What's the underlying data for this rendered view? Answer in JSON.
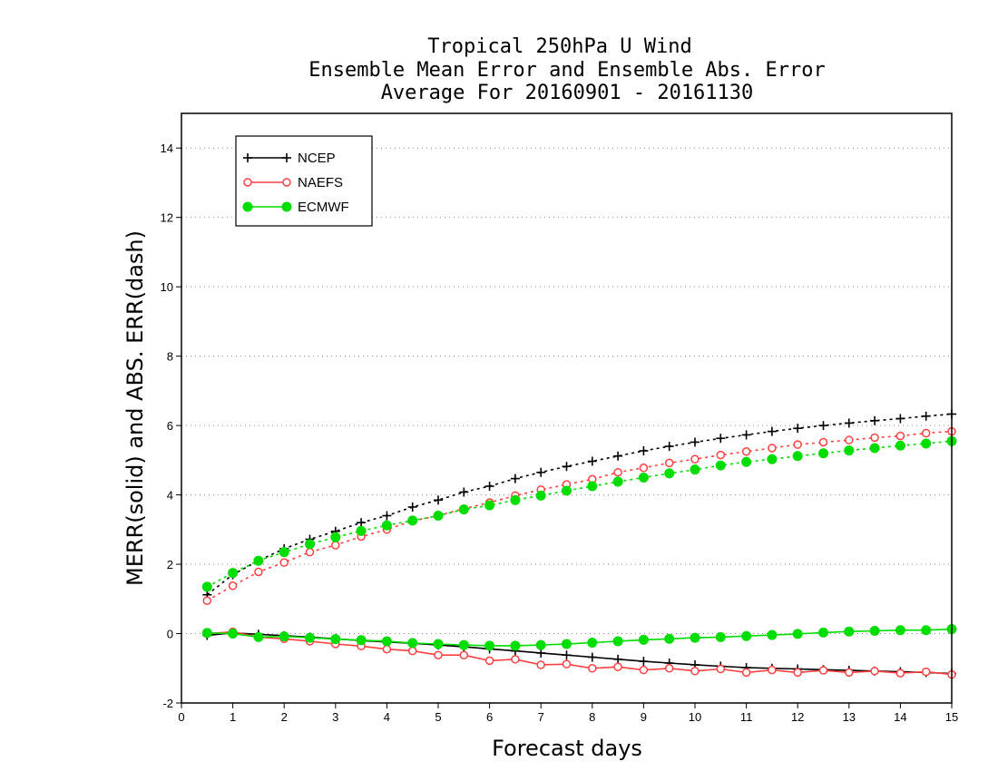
{
  "chart_data": {
    "type": "line",
    "title_lines": [
      "Tropical 250hPa U Wind",
      "Ensemble Mean Error and Ensemble Abs. Error",
      "Average For 20160901 - 20161130"
    ],
    "xlabel": "Forecast days",
    "ylabel": "MERR(solid) and ABS. ERR(dash)",
    "xlim": [
      0,
      15
    ],
    "ylim": [
      -2,
      15
    ],
    "xticks": [
      "0",
      "1",
      "2",
      "3",
      "4",
      "5",
      "6",
      "7",
      "8",
      "9",
      "10",
      "11",
      "12",
      "13",
      "14",
      "15"
    ],
    "yticks": [
      "-2",
      "0",
      "2",
      "4",
      "6",
      "8",
      "10",
      "12",
      "14"
    ],
    "grid": "horizontal dotted",
    "legend_position": "top-left",
    "x": [
      0.5,
      1,
      1.5,
      2,
      2.5,
      3,
      3.5,
      4,
      4.5,
      5,
      5.5,
      6,
      6.5,
      7,
      7.5,
      8,
      8.5,
      9,
      9.5,
      10,
      10.5,
      11,
      11.5,
      12,
      12.5,
      13,
      13.5,
      14,
      14.5,
      15
    ],
    "series": [
      {
        "name": "NCEP",
        "color": "#000000",
        "marker": "plus",
        "abs_error": [
          1.12,
          1.7,
          2.1,
          2.45,
          2.72,
          2.95,
          3.2,
          3.4,
          3.65,
          3.85,
          4.08,
          4.25,
          4.47,
          4.65,
          4.82,
          4.97,
          5.12,
          5.27,
          5.4,
          5.52,
          5.63,
          5.73,
          5.83,
          5.92,
          6.0,
          6.07,
          6.14,
          6.2,
          6.27,
          6.33
        ],
        "mean_error": [
          -0.05,
          0.02,
          -0.02,
          -0.06,
          -0.1,
          -0.15,
          -0.2,
          -0.24,
          -0.28,
          -0.33,
          -0.38,
          -0.44,
          -0.5,
          -0.56,
          -0.62,
          -0.68,
          -0.74,
          -0.8,
          -0.85,
          -0.9,
          -0.94,
          -0.98,
          -1.0,
          -1.02,
          -1.04,
          -1.06,
          -1.08,
          -1.1,
          -1.12,
          -1.15
        ]
      },
      {
        "name": "NAEFS",
        "color": "#ff4040",
        "marker": "open-circle",
        "abs_error": [
          0.95,
          1.38,
          1.78,
          2.05,
          2.35,
          2.55,
          2.8,
          3.0,
          3.25,
          3.4,
          3.6,
          3.78,
          3.98,
          4.15,
          4.3,
          4.45,
          4.65,
          4.78,
          4.92,
          5.03,
          5.15,
          5.25,
          5.35,
          5.45,
          5.52,
          5.58,
          5.65,
          5.7,
          5.78,
          5.83
        ],
        "mean_error": [
          0.0,
          0.05,
          -0.1,
          -0.15,
          -0.22,
          -0.3,
          -0.36,
          -0.45,
          -0.5,
          -0.62,
          -0.62,
          -0.78,
          -0.74,
          -0.9,
          -0.88,
          -1.0,
          -0.96,
          -1.05,
          -1.0,
          -1.08,
          -1.02,
          -1.12,
          -1.05,
          -1.12,
          -1.06,
          -1.12,
          -1.08,
          -1.14,
          -1.1,
          -1.18
        ]
      },
      {
        "name": "ECMWF",
        "color": "#00dd00",
        "marker": "filled-circle",
        "abs_error": [
          1.35,
          1.75,
          2.1,
          2.35,
          2.58,
          2.78,
          2.96,
          3.12,
          3.26,
          3.4,
          3.58,
          3.7,
          3.85,
          3.98,
          4.12,
          4.25,
          4.38,
          4.5,
          4.62,
          4.73,
          4.85,
          4.95,
          5.03,
          5.12,
          5.2,
          5.28,
          5.35,
          5.42,
          5.48,
          5.55
        ],
        "mean_error": [
          0.02,
          0.0,
          -0.1,
          -0.08,
          -0.12,
          -0.16,
          -0.19,
          -0.22,
          -0.27,
          -0.3,
          -0.33,
          -0.35,
          -0.35,
          -0.33,
          -0.3,
          -0.26,
          -0.22,
          -0.18,
          -0.15,
          -0.12,
          -0.1,
          -0.07,
          -0.04,
          -0.01,
          0.03,
          0.06,
          0.08,
          0.1,
          0.1,
          0.13
        ]
      }
    ]
  }
}
